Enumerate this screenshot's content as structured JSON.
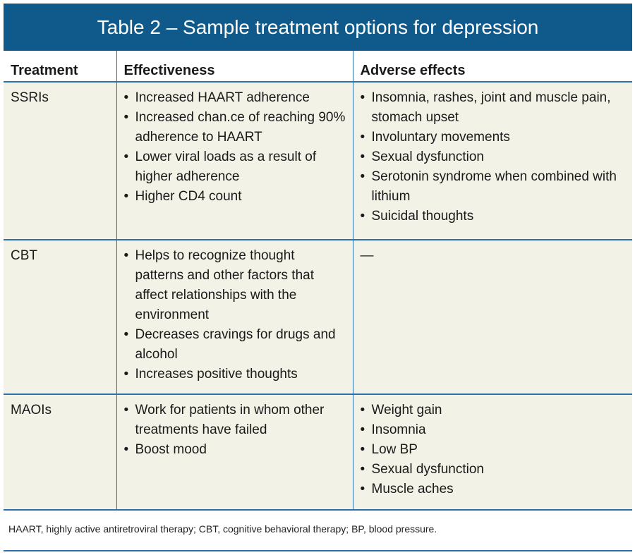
{
  "title": "Table 2 – Sample treatment options for depression",
  "headers": [
    "Treatment",
    "Effectiveness",
    "Adverse effects"
  ],
  "rows": [
    {
      "treatment": "SSRIs",
      "effectiveness": [
        "Increased HAART adherence",
        "Increased chan.ce of reaching 90% adherence to HAART",
        "Lower viral loads as a result of higher adherence",
        "Higher CD4 count"
      ],
      "adverse": [
        "Insomnia, rashes, joint and muscle pain, stomach upset",
        "Involuntary movements",
        "Sexual dysfunction",
        "Serotonin syndrome when combined with lithium",
        "Suicidal thoughts"
      ]
    },
    {
      "treatment": "CBT",
      "effectiveness": [
        "Helps to recognize thought patterns and other factors that affect relationships with the environment",
        "Decreases cravings for drugs and alcohol",
        "Increases positive thoughts"
      ],
      "adverse_text": "—"
    },
    {
      "treatment": "MAOIs",
      "effectiveness": [
        "Work for patients in whom other treatments have failed",
        "Boost mood"
      ],
      "adverse": [
        "Weight gain",
        "Insomnia",
        "Low BP",
        "Sexual dysfunction",
        "Muscle aches"
      ]
    }
  ],
  "footnote": "HAART, highly active antiretroviral therapy; CBT, cognitive behavioral therapy; BP, blood pressure."
}
